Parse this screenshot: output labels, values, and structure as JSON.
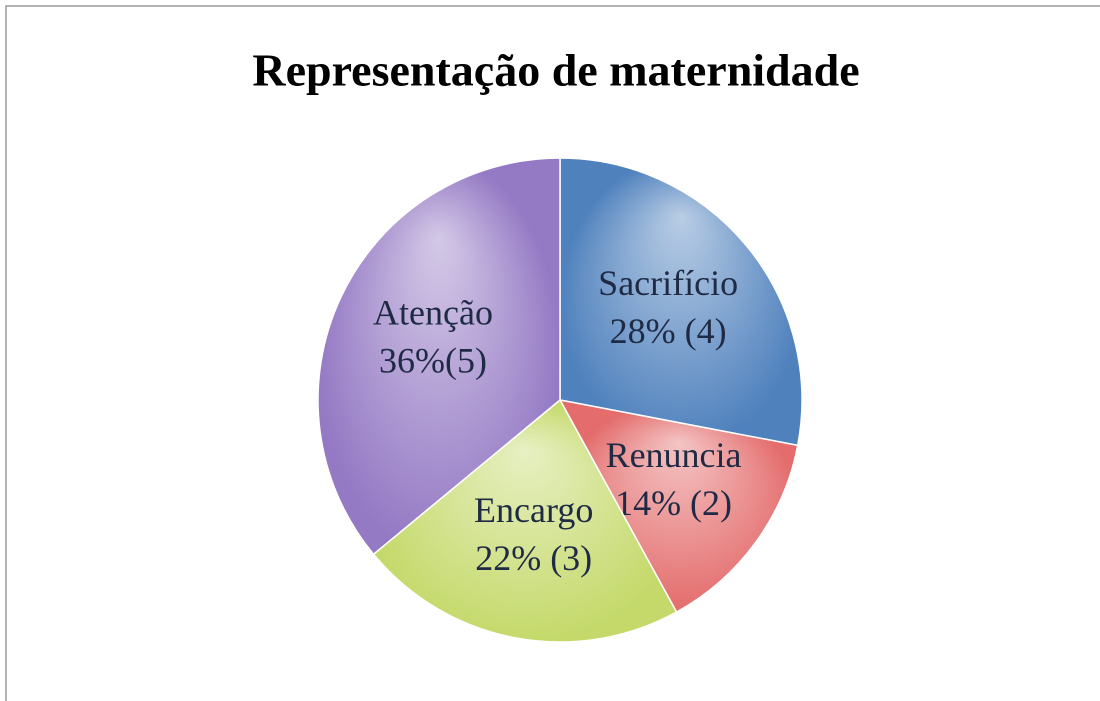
{
  "chart_data": {
    "type": "pie",
    "title": "Representação de maternidade",
    "categories": [
      "Sacrifício",
      "Renuncia",
      "Encargo",
      "Atenção"
    ],
    "values": [
      28,
      14,
      22,
      36
    ],
    "value_labels": [
      "28% (4)",
      "14% (2)",
      "22% (3)",
      "36%(5)"
    ],
    "colors": [
      "#4f81bd",
      "#e46c6c",
      "#c4d96a",
      "#9479c4"
    ]
  }
}
